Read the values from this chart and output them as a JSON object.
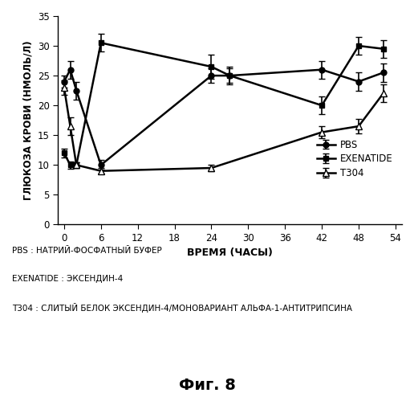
{
  "pbs_x": [
    0,
    1,
    2,
    6,
    24,
    27,
    42,
    48,
    52
  ],
  "pbs_y": [
    24,
    26,
    22.5,
    10,
    25,
    25,
    26,
    24,
    25.5
  ],
  "pbs_err": [
    1.0,
    1.5,
    1.5,
    0.8,
    1.2,
    1.2,
    1.5,
    1.5,
    1.5
  ],
  "exenatide_x": [
    0,
    1,
    2,
    6,
    24,
    27,
    42,
    48,
    52
  ],
  "exenatide_y": [
    12,
    10,
    10,
    30.5,
    26.5,
    25,
    20,
    30,
    29.5
  ],
  "exenatide_err": [
    0.8,
    0.6,
    0.5,
    1.5,
    2.0,
    1.5,
    1.5,
    1.5,
    1.5
  ],
  "t304_x": [
    0,
    1,
    2,
    6,
    24,
    42,
    48,
    52
  ],
  "t304_y": [
    23,
    16.5,
    10,
    9,
    9.5,
    15.5,
    16.5,
    22
  ],
  "t304_err": [
    1.2,
    1.5,
    0.5,
    0.5,
    0.5,
    1.0,
    1.2,
    1.5
  ],
  "ylabel": "ГЛЮКОЗА КРОВИ (НМОЛЬ/Л)",
  "xlabel": "ВРЕМЯ (ЧАСЫ)",
  "ylim": [
    0,
    35
  ],
  "xlim": [
    -1,
    55
  ],
  "xticks": [
    0,
    6,
    12,
    18,
    24,
    30,
    36,
    42,
    48,
    54
  ],
  "yticks": [
    0,
    5,
    10,
    15,
    20,
    25,
    30,
    35
  ],
  "legend_pbs": "PBS",
  "legend_exenatide": "EXENATIDE",
  "legend_t304": "T304",
  "note1": "PBS : НАТРИЙ-ФОСФАТНЫЙ БУФЕР",
  "note2": "EXENATIDE : ЭКСЕНДИН-4",
  "note3": "T304 : СЛИТЫЙ БЕЛОК ЭКСЕНДИН-4/МОНОВАРИАНТ АЛЬФА-1-АНТИТРИПСИНА",
  "fig_label": "Фиг. 8",
  "line_color": "#000000",
  "background": "#ffffff"
}
